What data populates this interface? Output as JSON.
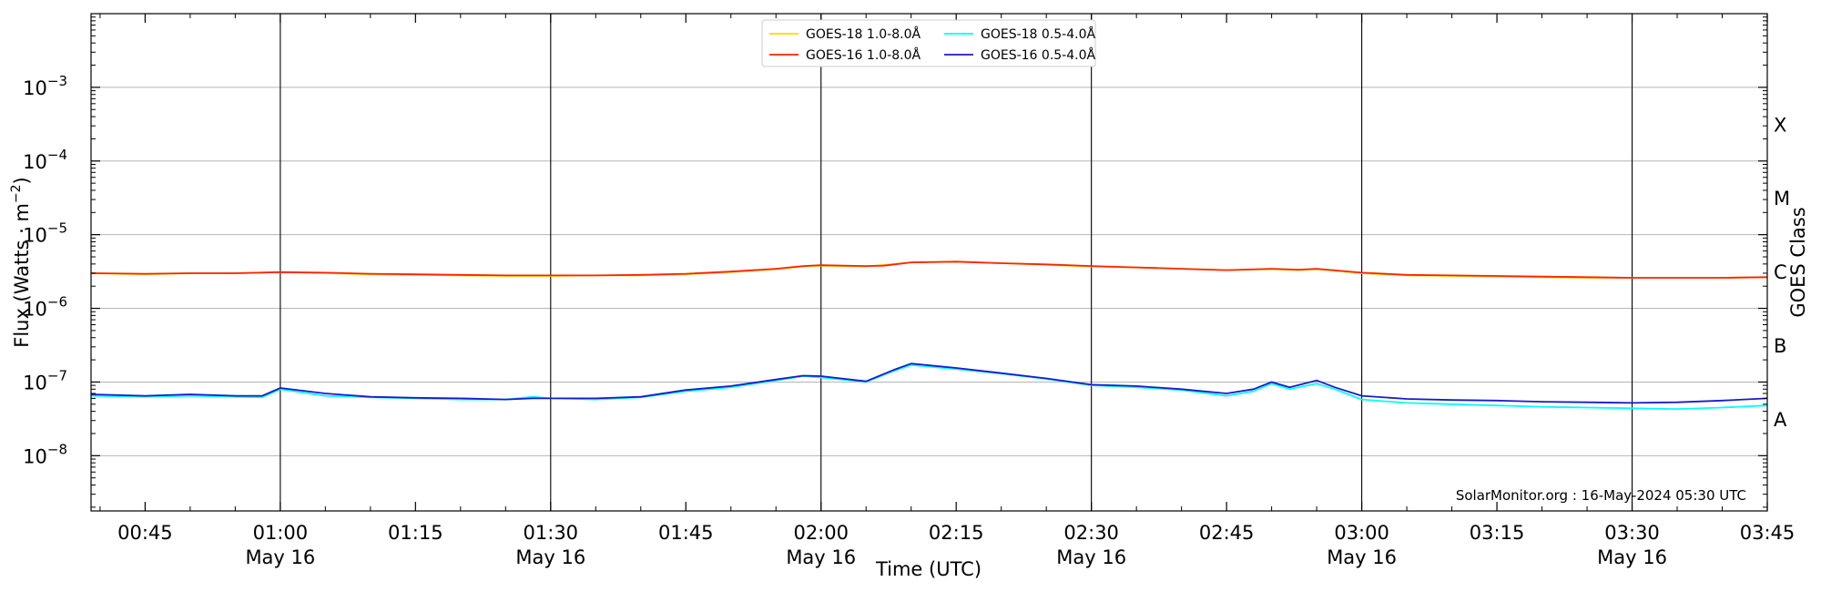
{
  "chart_data": {
    "type": "line",
    "xlabel": "Time (UTC)",
    "ylabel": "Flux (Watts · m",
    "ylabel_exp": "−2",
    "ylabel_close": ")",
    "right_label": "GOES Class",
    "credit": "SolarMonitor.org : 16-May-2024 05:30 UTC",
    "x_range_minutes": [
      39,
      225
    ],
    "ylim_log10": [
      -8.75,
      -2.0
    ],
    "y_scale": "log",
    "grid": "horizontal at decades; vertical at half-hour marks",
    "legend_position": "top-center",
    "x_ticks": [
      {
        "minute": 45,
        "time": "00:45",
        "date": ""
      },
      {
        "minute": 60,
        "time": "01:00",
        "date": "May 16"
      },
      {
        "minute": 75,
        "time": "01:15",
        "date": ""
      },
      {
        "minute": 90,
        "time": "01:30",
        "date": "May 16"
      },
      {
        "minute": 105,
        "time": "01:45",
        "date": ""
      },
      {
        "minute": 120,
        "time": "02:00",
        "date": "May 16"
      },
      {
        "minute": 135,
        "time": "02:15",
        "date": ""
      },
      {
        "minute": 150,
        "time": "02:30",
        "date": "May 16"
      },
      {
        "minute": 165,
        "time": "02:45",
        "date": ""
      },
      {
        "minute": 180,
        "time": "03:00",
        "date": "May 16"
      },
      {
        "minute": 195,
        "time": "03:15",
        "date": ""
      },
      {
        "minute": 210,
        "time": "03:30",
        "date": "May 16"
      },
      {
        "minute": 225,
        "time": "03:45",
        "date": ""
      }
    ],
    "y_ticks": [
      {
        "exp": -3,
        "base": "10",
        "sup": "−3"
      },
      {
        "exp": -4,
        "base": "10",
        "sup": "−4"
      },
      {
        "exp": -5,
        "base": "10",
        "sup": "−5"
      },
      {
        "exp": -6,
        "base": "10",
        "sup": "−6"
      },
      {
        "exp": -7,
        "base": "10",
        "sup": "−7"
      },
      {
        "exp": -8,
        "base": "10",
        "sup": "−8"
      }
    ],
    "goes_classes": [
      {
        "letter": "X",
        "exp": -3.5
      },
      {
        "letter": "M",
        "exp": -4.5
      },
      {
        "letter": "C",
        "exp": -5.5
      },
      {
        "letter": "B",
        "exp": -6.5
      },
      {
        "letter": "A",
        "exp": -7.5
      }
    ],
    "series": [
      {
        "name": "GOES-18 1.0-8.0Å",
        "color": "#ffd700",
        "x": [
          39,
          45,
          50,
          55,
          60,
          65,
          70,
          75,
          80,
          85,
          90,
          95,
          100,
          105,
          110,
          115,
          118,
          120,
          125,
          130,
          135,
          140,
          145,
          150,
          155,
          160,
          165,
          170,
          173,
          175,
          180,
          185,
          190,
          195,
          200,
          205,
          210,
          215,
          220,
          225
        ],
        "values": [
          3e-06,
          2.9e-06,
          3e-06,
          3e-06,
          3.1e-06,
          3e-06,
          2.9e-06,
          2.85e-06,
          2.8e-06,
          2.75e-06,
          2.75e-06,
          2.8e-06,
          2.8e-06,
          2.9e-06,
          3.1e-06,
          3.4e-06,
          3.7e-06,
          3.8e-06,
          3.7e-06,
          4.2e-06,
          4.3e-06,
          4.1e-06,
          3.9e-06,
          3.7e-06,
          3.6e-06,
          3.45e-06,
          3.3e-06,
          3.4e-06,
          3.3e-06,
          3.4e-06,
          3e-06,
          2.8e-06,
          2.75e-06,
          2.7e-06,
          2.65e-06,
          2.6e-06,
          2.6e-06,
          2.6e-06,
          2.6e-06,
          2.65e-06
        ]
      },
      {
        "name": "GOES-18 0.5-4.0Å",
        "color": "#00ffff",
        "x": [
          39,
          45,
          50,
          55,
          58,
          60,
          65,
          70,
          75,
          80,
          85,
          88,
          90,
          95,
          100,
          105,
          110,
          115,
          118,
          120,
          125,
          128,
          130,
          135,
          140,
          145,
          150,
          155,
          160,
          165,
          168,
          170,
          172,
          175,
          177,
          180,
          185,
          190,
          195,
          200,
          205,
          210,
          215,
          220,
          225
        ],
        "values": [
          6.5e-08,
          6.3e-08,
          6.5e-08,
          6.3e-08,
          6.2e-08,
          8e-08,
          6.5e-08,
          6.2e-08,
          6e-08,
          5.8e-08,
          5.8e-08,
          6.3e-08,
          6e-08,
          5.8e-08,
          6.2e-08,
          7.5e-08,
          8.5e-08,
          1.05e-07,
          1.2e-07,
          1.15e-07,
          1e-07,
          1.4e-07,
          1.7e-07,
          1.5e-07,
          1.3e-07,
          1.1e-07,
          9e-08,
          8.5e-08,
          7.8e-08,
          6.5e-08,
          7.5e-08,
          9.5e-08,
          8e-08,
          9.5e-08,
          8e-08,
          5.8e-08,
          5.2e-08,
          5e-08,
          4.8e-08,
          4.6e-08,
          4.5e-08,
          4.4e-08,
          4.3e-08,
          4.5e-08,
          4.8e-08
        ]
      },
      {
        "name": "GOES-16 1.0-8.0Å",
        "color": "#ff2200",
        "x": [
          39,
          45,
          50,
          55,
          60,
          65,
          70,
          75,
          80,
          85,
          90,
          95,
          100,
          105,
          110,
          115,
          118,
          120,
          125,
          127,
          130,
          135,
          140,
          145,
          150,
          155,
          160,
          165,
          170,
          173,
          175,
          180,
          185,
          190,
          195,
          200,
          205,
          210,
          215,
          220,
          225
        ],
        "values": [
          3e-06,
          2.95e-06,
          3e-06,
          3e-06,
          3.1e-06,
          3.05e-06,
          2.95e-06,
          2.9e-06,
          2.85e-06,
          2.8e-06,
          2.8e-06,
          2.8e-06,
          2.85e-06,
          2.95e-06,
          3.15e-06,
          3.45e-06,
          3.75e-06,
          3.85e-06,
          3.75e-06,
          3.8e-06,
          4.2e-06,
          4.3e-06,
          4.1e-06,
          3.95e-06,
          3.75e-06,
          3.6e-06,
          3.45e-06,
          3.3e-06,
          3.45e-06,
          3.35e-06,
          3.45e-06,
          3.05e-06,
          2.85e-06,
          2.8e-06,
          2.75e-06,
          2.7e-06,
          2.65e-06,
          2.6e-06,
          2.6e-06,
          2.6e-06,
          2.65e-06
        ]
      },
      {
        "name": "GOES-16 0.5-4.0Å",
        "color": "#1a1acc",
        "x": [
          39,
          45,
          50,
          55,
          58,
          60,
          65,
          70,
          75,
          80,
          85,
          88,
          90,
          95,
          100,
          105,
          110,
          115,
          118,
          120,
          125,
          128,
          130,
          135,
          140,
          145,
          150,
          155,
          160,
          165,
          168,
          170,
          172,
          175,
          177,
          180,
          185,
          190,
          195,
          200,
          205,
          210,
          215,
          220,
          225
        ],
        "values": [
          6.8e-08,
          6.5e-08,
          6.8e-08,
          6.5e-08,
          6.5e-08,
          8.3e-08,
          7e-08,
          6.3e-08,
          6.1e-08,
          6e-08,
          5.8e-08,
          6e-08,
          6e-08,
          6e-08,
          6.3e-08,
          7.8e-08,
          8.8e-08,
          1.08e-07,
          1.22e-07,
          1.2e-07,
          1.02e-07,
          1.45e-07,
          1.78e-07,
          1.55e-07,
          1.32e-07,
          1.12e-07,
          9.2e-08,
          8.8e-08,
          8e-08,
          7e-08,
          8e-08,
          1e-07,
          8.5e-08,
          1.05e-07,
          8.5e-08,
          6.5e-08,
          5.9e-08,
          5.7e-08,
          5.6e-08,
          5.4e-08,
          5.3e-08,
          5.2e-08,
          5.3e-08,
          5.6e-08,
          6e-08
        ]
      }
    ],
    "legend_order": [
      0,
      1,
      2,
      3
    ]
  }
}
